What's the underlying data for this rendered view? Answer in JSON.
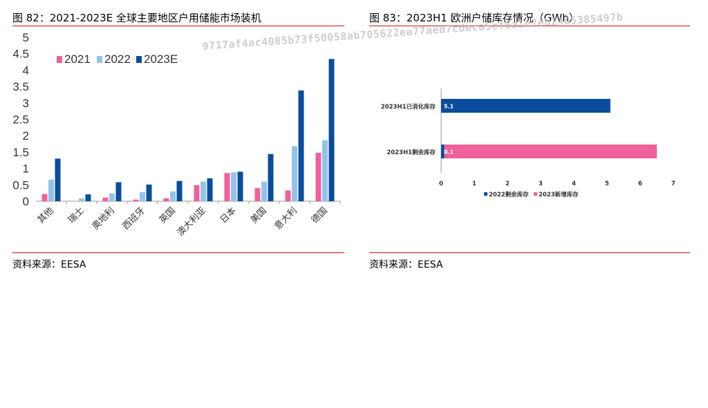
{
  "left": {
    "title": "图 82：2021-2023E 全球主要地区户用储能市场装机",
    "source": "资料来源：EESA"
  },
  "right": {
    "title": "图 83：2023H1 欧洲户储库存情况（GWh）",
    "source": "资料来源：EESA"
  },
  "watermark": "9717af4ac4085b73f50058ab705622ea77aed7cdeca5cf6a1e7eb2405385497b",
  "colors": {
    "accent_rule": "#c0141a",
    "pink": "#f0609a",
    "lightblue": "#93c3eb",
    "navy": "#0a4d9c"
  },
  "chart_data": [
    {
      "type": "bar",
      "categories": [
        "其他",
        "瑞士",
        "奥地利",
        "西班牙",
        "英国",
        "澳大利亚",
        "日本",
        "美国",
        "意大利",
        "德国"
      ],
      "series": [
        {
          "name": "2021",
          "values": [
            0.22,
            0.0,
            0.11,
            0.05,
            0.09,
            0.49,
            0.86,
            0.4,
            0.33,
            1.48
          ]
        },
        {
          "name": "2022",
          "values": [
            0.66,
            0.09,
            0.24,
            0.28,
            0.3,
            0.6,
            0.88,
            0.6,
            1.68,
            1.86
          ]
        },
        {
          "name": "2023E",
          "values": [
            1.3,
            0.21,
            0.58,
            0.51,
            0.62,
            0.7,
            0.9,
            1.44,
            3.38,
            4.34
          ]
        }
      ],
      "yticks": [
        "0",
        "0.5",
        "1",
        "1.5",
        "2",
        "2.5",
        "3",
        "3.5",
        "4",
        "4.5",
        "5"
      ],
      "ylim": [
        0,
        5
      ],
      "legend_position": "top-left"
    },
    {
      "type": "bar",
      "orientation": "horizontal",
      "categories": [
        "2023H1已消化库存",
        "2023H1剩余库存"
      ],
      "series": [
        {
          "name": "2022剩余库存",
          "values": [
            5.1,
            0.1
          ]
        },
        {
          "name": "2023新增库存",
          "values": [
            0,
            6.4
          ]
        }
      ],
      "data_labels": [
        "5.1",
        "0.1"
      ],
      "xticks": [
        "0",
        "1",
        "2",
        "3",
        "4",
        "5",
        "6",
        "7"
      ],
      "xlim": [
        0,
        7
      ],
      "legend_position": "bottom"
    }
  ]
}
